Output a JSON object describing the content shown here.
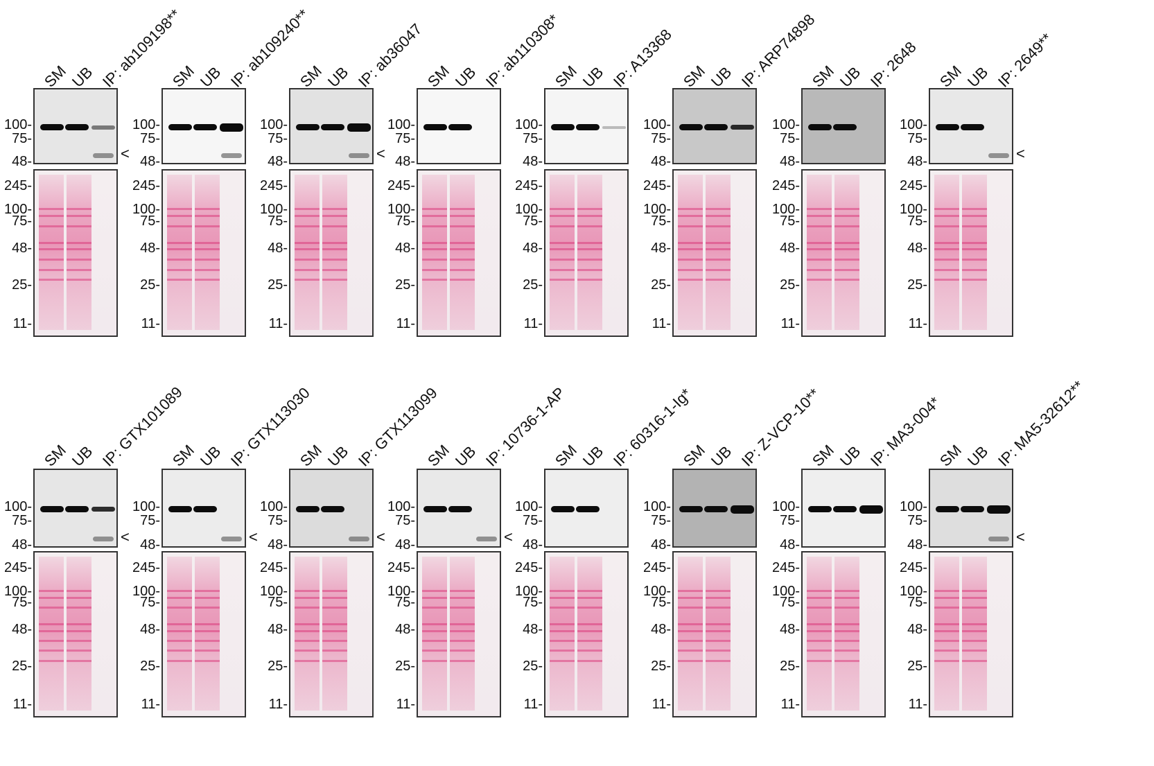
{
  "figure": {
    "lane_labels": [
      "SM",
      "UB"
    ],
    "ip_prefix": "IP: ",
    "blot_markers": [
      "100-",
      "75-",
      "48-"
    ],
    "blot_markers_with_245": [
      "245-",
      "100-",
      "75-",
      "48-"
    ],
    "ponceau_markers": [
      "245-",
      "100-",
      "75-",
      "48-",
      "25-",
      "11-"
    ],
    "arrow_glyph": "<",
    "ponceau_color": "#e0508a"
  },
  "panels": [
    {
      "ip": "IP: ab109198**",
      "bg": "#e6e6e6",
      "ip_band": "weak",
      "arrow": "<",
      "ip_light": true
    },
    {
      "ip": "IP: ab109240**",
      "bg": "#f6f6f6",
      "ip_band": "strong",
      "arrow": "",
      "ip_light": true
    },
    {
      "ip": "IP: ab36047",
      "bg": "#e2e2e2",
      "ip_band": "strong",
      "arrow": "<",
      "ip_light": true
    },
    {
      "ip": "IP: ab110308*",
      "bg": "#f7f7f7",
      "ip_band": "none",
      "arrow": "",
      "ip_light": false
    },
    {
      "ip": "IP: A13368",
      "bg": "#f5f5f5",
      "ip_band": "faint",
      "arrow": "",
      "ip_light": false
    },
    {
      "ip": "IP: ARP74898",
      "bg": "#c8c8c8",
      "ip_band": "medium",
      "arrow": "",
      "ip_light": false
    },
    {
      "ip": "IP: 2648",
      "bg": "#b9b9b9",
      "ip_band": "none",
      "arrow": "",
      "ip_light": false
    },
    {
      "ip": "IP: 2649**",
      "bg": "#e8e8e8",
      "ip_band": "none",
      "arrow": "<",
      "ip_light": true
    },
    {
      "ip": "IP: GTX101089",
      "bg": "#e6e6e6",
      "ip_band": "medium",
      "arrow": "<",
      "ip_light": true
    },
    {
      "ip": "IP: GTX113030",
      "bg": "#ececec",
      "ip_band": "none",
      "arrow": "<",
      "ip_light": true
    },
    {
      "ip": "IP: GTX113099",
      "bg": "#dcdcdc",
      "ip_band": "none",
      "arrow": "<",
      "ip_light": true
    },
    {
      "ip": "IP: 10736-1-AP",
      "bg": "#e9e9e9",
      "ip_band": "none",
      "arrow": "<",
      "ip_light": true
    },
    {
      "ip": "IP: 60316-1-Ig*",
      "bg": "#eeeeee",
      "ip_band": "none",
      "arrow": "",
      "ip_light": false
    },
    {
      "ip": "IP: Z-VCP-10**",
      "bg": "#b3b3b3",
      "ip_band": "strong",
      "arrow": "",
      "ip_light": false
    },
    {
      "ip": "IP: MA3-004*",
      "bg": "#efefef",
      "ip_band": "strong",
      "arrow": "",
      "ip_light": false
    },
    {
      "ip": "IP: MA5-32612**",
      "bg": "#dedede",
      "ip_band": "strong",
      "arrow": "<",
      "ip_light": true
    }
  ]
}
